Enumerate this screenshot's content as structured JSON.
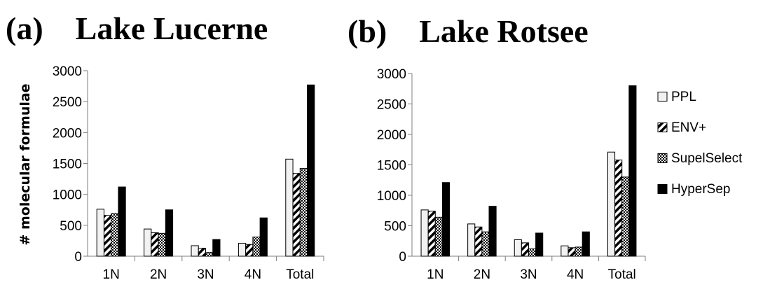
{
  "ylabel": "# molecular formulae",
  "legend": {
    "placement": "right",
    "entries": [
      "PPL",
      "ENV+",
      "SupelSelect",
      "HyperSep"
    ]
  },
  "series_styles": [
    {
      "name": "PPL",
      "pattern": "solid-light",
      "color": "#f2f2f2"
    },
    {
      "name": "ENV+",
      "pattern": "diagonal-stripes",
      "color": "#000000"
    },
    {
      "name": "SupelSelect",
      "pattern": "checker",
      "color": "#000000"
    },
    {
      "name": "HyperSep",
      "pattern": "solid-dark",
      "color": "#000000"
    }
  ],
  "chart_data": [
    {
      "type": "bar",
      "title": "(a)    Lake Lucerne",
      "categories": [
        "1N",
        "2N",
        "3N",
        "4N",
        "Total"
      ],
      "ylim": [
        0,
        3000
      ],
      "yticks": [
        0,
        500,
        1000,
        1500,
        2000,
        2500,
        3000
      ],
      "grid": false,
      "series": [
        {
          "name": "PPL",
          "values": [
            760,
            440,
            170,
            210,
            1570
          ]
        },
        {
          "name": "ENV+",
          "values": [
            660,
            380,
            130,
            190,
            1340
          ]
        },
        {
          "name": "SupelSelect",
          "values": [
            690,
            370,
            60,
            310,
            1420
          ]
        },
        {
          "name": "HyperSep",
          "values": [
            1120,
            750,
            270,
            620,
            2770
          ]
        }
      ]
    },
    {
      "type": "bar",
      "title": "(b)    Lake Rotsee",
      "categories": [
        "1N",
        "2N",
        "3N",
        "4N",
        "Total"
      ],
      "ylim": [
        0,
        3000
      ],
      "yticks": [
        0,
        500,
        1000,
        1500,
        2000,
        2500,
        3000
      ],
      "grid": false,
      "series": [
        {
          "name": "PPL",
          "values": [
            760,
            530,
            270,
            170,
            1710
          ]
        },
        {
          "name": "ENV+",
          "values": [
            740,
            480,
            220,
            140,
            1580
          ]
        },
        {
          "name": "SupelSelect",
          "values": [
            640,
            400,
            120,
            150,
            1300
          ]
        },
        {
          "name": "HyperSep",
          "values": [
            1210,
            820,
            380,
            400,
            2800
          ]
        }
      ]
    }
  ]
}
